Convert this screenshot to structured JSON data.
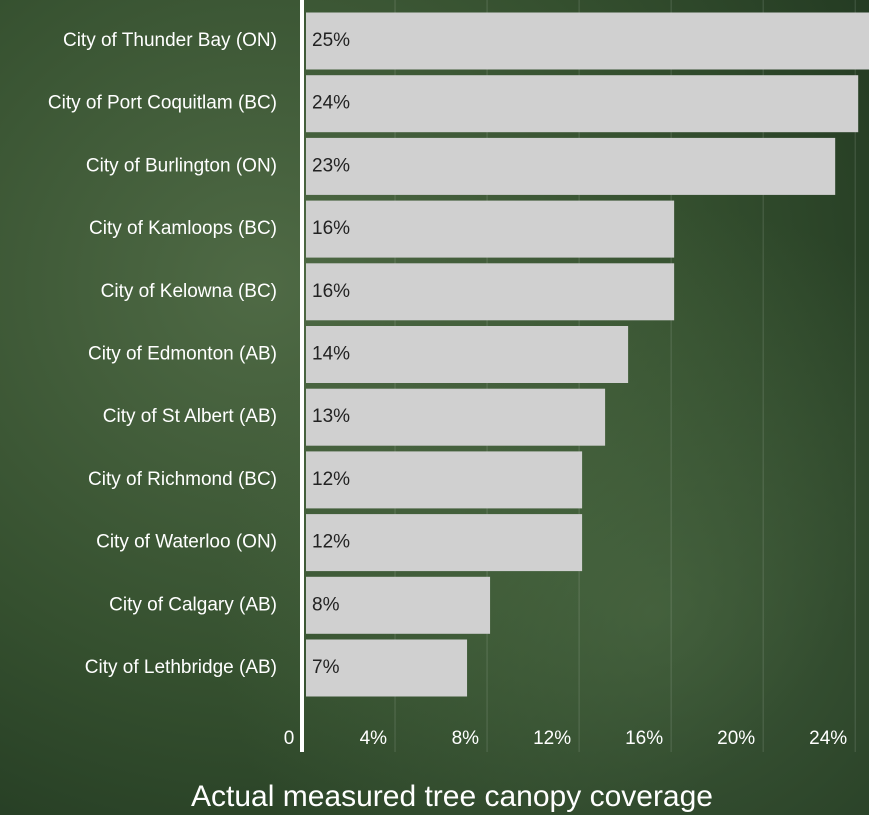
{
  "chart_data": {
    "type": "bar",
    "orientation": "horizontal",
    "title": "Actual measured tree canopy coverage",
    "categories": [
      "City of Thunder Bay (ON)",
      "City of Port Coquitlam (BC)",
      "City of Burlington (ON)",
      "City of Kamloops (BC)",
      "City of Kelowna (BC)",
      "City of Edmonton (AB)",
      "City of St Albert (AB)",
      "City of Richmond (BC)",
      "City of Waterloo (ON)",
      "City of Calgary (AB)",
      "City of Lethbridge (AB)"
    ],
    "values": [
      25,
      24,
      23,
      16,
      16,
      14,
      13,
      12,
      12,
      8,
      7
    ],
    "value_labels": [
      "25%",
      "24%",
      "23%",
      "16%",
      "16%",
      "14%",
      "13%",
      "12%",
      "12%",
      "8%",
      "7%"
    ],
    "color": "#d0d0d0",
    "xlim": [
      0,
      24.6
    ],
    "xticks": [
      0,
      {
        "value": 4,
        "label": "4%"
      },
      {
        "value": 8,
        "label": "8%"
      },
      {
        "value": 12,
        "label": "12%"
      },
      {
        "value": 16,
        "label": "16%"
      },
      {
        "value": 20,
        "label": "20%"
      },
      {
        "value": 24,
        "label": "24%"
      }
    ],
    "grid": true
  }
}
